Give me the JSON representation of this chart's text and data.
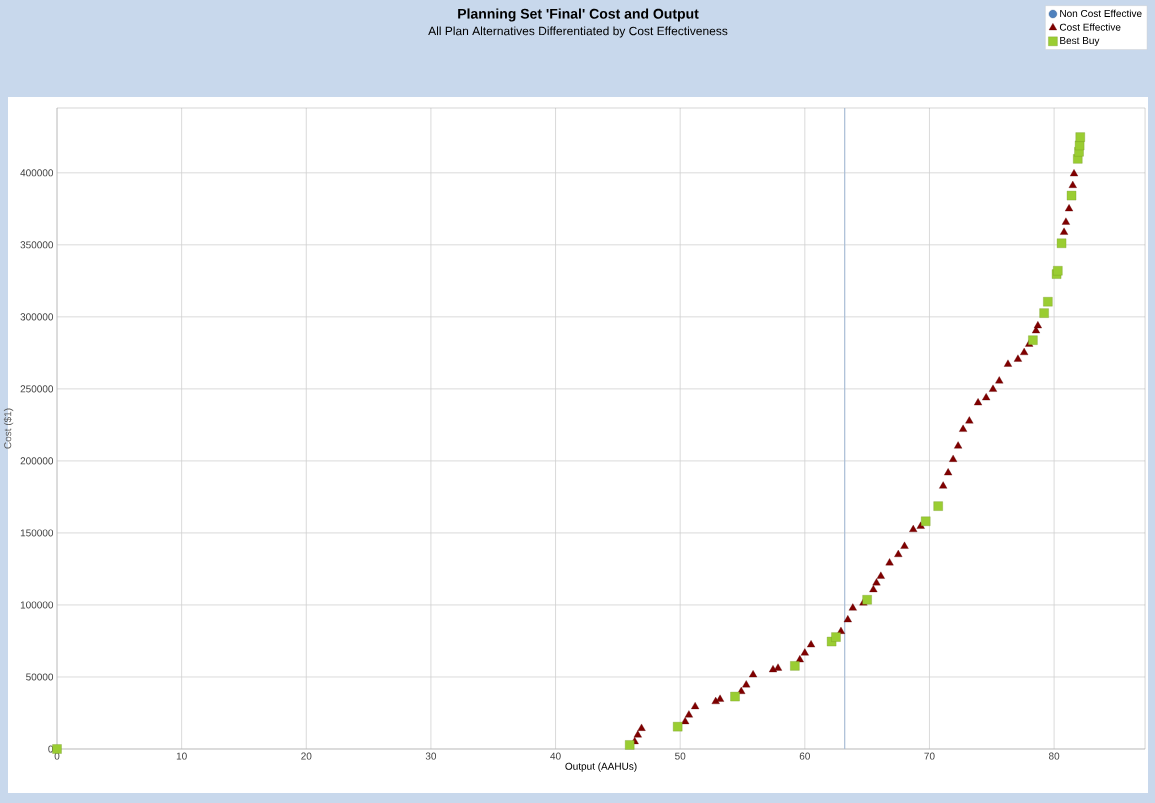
{
  "chart_data": {
    "type": "scatter",
    "title": "Planning Set 'Final' Cost and Output",
    "subtitle": "All Plan Alternatives Differentiated by Cost Effectiveness",
    "xlabel": "Output (AAHUs)",
    "ylabel": "Cost ($1)",
    "xlim": [
      0,
      87.3
    ],
    "ylim": [
      0,
      445000
    ],
    "xticks": [
      0,
      10,
      20,
      30,
      40,
      50,
      60,
      70,
      80
    ],
    "yticks": [
      0,
      50000,
      100000,
      150000,
      200000,
      250000,
      300000,
      350000,
      400000
    ],
    "grid": true,
    "legend": "top right",
    "ref_lines": [
      {
        "axis": "x",
        "value": 63.2,
        "color": "#a9bdd6"
      }
    ],
    "series": [
      {
        "name": "Non Cost Effective",
        "color": "#4f81bd",
        "marker": "circle"
      },
      {
        "name": "Cost Effective",
        "color": "#800000",
        "marker": "triangle",
        "x": [
          46.35,
          46.6,
          46.9,
          50.4,
          50.7,
          51.2,
          52.85,
          53.2,
          54.9,
          55.3,
          55.85,
          57.45,
          57.85,
          59.6,
          60.0,
          60.5,
          62.9,
          63.45,
          63.85,
          64.7,
          65.5,
          65.75,
          66.1,
          66.8,
          67.5,
          68.0,
          68.7,
          69.3,
          71.1,
          71.5,
          71.9,
          72.3,
          72.7,
          73.2,
          73.9,
          74.55,
          75.1,
          75.6,
          76.3,
          77.1,
          77.6,
          78.0,
          78.55,
          78.7,
          80.8,
          80.95,
          81.2,
          81.5,
          81.6
        ],
        "values": [
          5100,
          9700,
          14300,
          19000,
          23600,
          29400,
          32900,
          34500,
          39900,
          44500,
          51500,
          55000,
          56100,
          61900,
          66600,
          72300,
          81600,
          89700,
          97800,
          101400,
          110600,
          115300,
          119900,
          129200,
          135000,
          140700,
          152300,
          154600,
          182500,
          191700,
          201000,
          210300,
          221900,
          227700,
          240300,
          243800,
          249700,
          255500,
          267100,
          270600,
          275200,
          281000,
          290300,
          293800,
          358700,
          365700,
          375000,
          391200,
          399300
        ]
      },
      {
        "name": "Best Buy",
        "color": "#9acd32",
        "marker": "square",
        "x": [
          0,
          45.95,
          49.8,
          54.4,
          59.2,
          62.15,
          62.5,
          65.0,
          69.7,
          70.7,
          78.3,
          79.2,
          79.5,
          80.2,
          80.3,
          80.6,
          81.4,
          81.9,
          82.0,
          82.05,
          82.1
        ],
        "values": [
          0,
          2800,
          15500,
          36400,
          57700,
          74600,
          77700,
          103600,
          158100,
          168600,
          283800,
          302600,
          310500,
          329700,
          332000,
          351100,
          384200,
          409700,
          414600,
          419000,
          424800
        ]
      }
    ]
  }
}
